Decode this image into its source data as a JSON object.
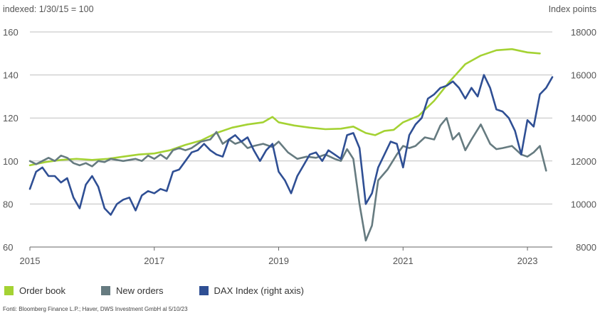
{
  "chart_data": {
    "type": "line",
    "left_axis_title": "indexed: 1/30/15 = 100",
    "right_axis_title": "Index points",
    "left_ylim": [
      60,
      160
    ],
    "left_ticks": [
      "160",
      "140",
      "120",
      "100",
      "80",
      "60"
    ],
    "left_tick_values": [
      160,
      140,
      120,
      100,
      80,
      60
    ],
    "right_ylim": [
      8000,
      18000
    ],
    "right_ticks": [
      "18000",
      "16000",
      "14000",
      "12000",
      "10000",
      "8000"
    ],
    "right_tick_values": [
      18000,
      16000,
      14000,
      12000,
      10000,
      8000
    ],
    "xlim": [
      2015.0,
      2023.4
    ],
    "x_ticks": [
      "2015",
      "2017",
      "2019",
      "2021",
      "2023"
    ],
    "x_tick_values": [
      2015,
      2017,
      2019,
      2021,
      2023
    ],
    "grid": true,
    "series": [
      {
        "name": "Order book",
        "color": "#a4d233",
        "axis": "left",
        "points": [
          [
            2015.0,
            98
          ],
          [
            2015.25,
            99.5
          ],
          [
            2015.5,
            100.5
          ],
          [
            2015.75,
            101
          ],
          [
            2016.0,
            100.5
          ],
          [
            2016.25,
            101
          ],
          [
            2016.5,
            102
          ],
          [
            2016.75,
            103
          ],
          [
            2017.0,
            103.5
          ],
          [
            2017.25,
            105
          ],
          [
            2017.5,
            107.5
          ],
          [
            2017.75,
            109.5
          ],
          [
            2018.0,
            113
          ],
          [
            2018.25,
            115.5
          ],
          [
            2018.5,
            117
          ],
          [
            2018.75,
            118
          ],
          [
            2018.9,
            120.5
          ],
          [
            2019.0,
            118
          ],
          [
            2019.25,
            116.5
          ],
          [
            2019.5,
            115.5
          ],
          [
            2019.75,
            114.8
          ],
          [
            2020.0,
            115
          ],
          [
            2020.2,
            116
          ],
          [
            2020.4,
            113
          ],
          [
            2020.55,
            112
          ],
          [
            2020.7,
            114
          ],
          [
            2020.85,
            114.5
          ],
          [
            2021.0,
            118
          ],
          [
            2021.25,
            121
          ],
          [
            2021.5,
            128
          ],
          [
            2021.75,
            137
          ],
          [
            2022.0,
            145
          ],
          [
            2022.25,
            149
          ],
          [
            2022.5,
            151.5
          ],
          [
            2022.75,
            152
          ],
          [
            2023.0,
            150.5
          ],
          [
            2023.2,
            150
          ]
        ]
      },
      {
        "name": "New orders",
        "color": "#667b80",
        "axis": "left",
        "points": [
          [
            2015.0,
            100
          ],
          [
            2015.1,
            98.5
          ],
          [
            2015.2,
            100
          ],
          [
            2015.3,
            101.5
          ],
          [
            2015.4,
            100
          ],
          [
            2015.5,
            102.5
          ],
          [
            2015.6,
            101.5
          ],
          [
            2015.7,
            99
          ],
          [
            2015.8,
            98
          ],
          [
            2015.9,
            99
          ],
          [
            2016.0,
            97.5
          ],
          [
            2016.1,
            100
          ],
          [
            2016.2,
            99.5
          ],
          [
            2016.3,
            101
          ],
          [
            2016.4,
            100.5
          ],
          [
            2016.5,
            100
          ],
          [
            2016.6,
            100.5
          ],
          [
            2016.7,
            101
          ],
          [
            2016.8,
            100
          ],
          [
            2016.9,
            102.5
          ],
          [
            2017.0,
            101
          ],
          [
            2017.1,
            103
          ],
          [
            2017.2,
            101
          ],
          [
            2017.3,
            105
          ],
          [
            2017.4,
            106
          ],
          [
            2017.5,
            105
          ],
          [
            2017.6,
            106
          ],
          [
            2017.75,
            109
          ],
          [
            2017.9,
            110
          ],
          [
            2018.0,
            113.5
          ],
          [
            2018.1,
            108
          ],
          [
            2018.2,
            110
          ],
          [
            2018.3,
            108
          ],
          [
            2018.4,
            109
          ],
          [
            2018.5,
            106
          ],
          [
            2018.6,
            107
          ],
          [
            2018.75,
            108
          ],
          [
            2018.9,
            106.5
          ],
          [
            2019.0,
            109
          ],
          [
            2019.15,
            104
          ],
          [
            2019.3,
            101
          ],
          [
            2019.45,
            102
          ],
          [
            2019.6,
            101.5
          ],
          [
            2019.75,
            103
          ],
          [
            2019.9,
            101
          ],
          [
            2020.0,
            100
          ],
          [
            2020.1,
            105.5
          ],
          [
            2020.2,
            101
          ],
          [
            2020.3,
            80
          ],
          [
            2020.4,
            63
          ],
          [
            2020.5,
            70
          ],
          [
            2020.6,
            91
          ],
          [
            2020.75,
            96
          ],
          [
            2020.9,
            103
          ],
          [
            2021.0,
            107
          ],
          [
            2021.1,
            106
          ],
          [
            2021.2,
            107
          ],
          [
            2021.35,
            111
          ],
          [
            2021.5,
            110
          ],
          [
            2021.6,
            116.5
          ],
          [
            2021.7,
            120
          ],
          [
            2021.8,
            110
          ],
          [
            2021.9,
            113
          ],
          [
            2022.0,
            105
          ],
          [
            2022.1,
            110
          ],
          [
            2022.25,
            117
          ],
          [
            2022.4,
            108
          ],
          [
            2022.5,
            105.5
          ],
          [
            2022.6,
            106
          ],
          [
            2022.75,
            107
          ],
          [
            2022.9,
            103
          ],
          [
            2023.0,
            102
          ],
          [
            2023.1,
            104
          ],
          [
            2023.2,
            107
          ],
          [
            2023.3,
            95.5
          ]
        ]
      },
      {
        "name": "DAX Index (right axis)",
        "color": "#2f4f94",
        "axis": "right",
        "points": [
          [
            2015.0,
            10700
          ],
          [
            2015.1,
            11500
          ],
          [
            2015.2,
            11700
          ],
          [
            2015.3,
            11300
          ],
          [
            2015.4,
            11300
          ],
          [
            2015.5,
            11000
          ],
          [
            2015.6,
            11200
          ],
          [
            2015.7,
            10300
          ],
          [
            2015.8,
            9800
          ],
          [
            2015.9,
            10900
          ],
          [
            2016.0,
            11300
          ],
          [
            2016.1,
            10800
          ],
          [
            2016.2,
            9800
          ],
          [
            2016.3,
            9500
          ],
          [
            2016.4,
            10000
          ],
          [
            2016.5,
            10200
          ],
          [
            2016.6,
            10300
          ],
          [
            2016.7,
            9700
          ],
          [
            2016.8,
            10400
          ],
          [
            2016.9,
            10600
          ],
          [
            2017.0,
            10500
          ],
          [
            2017.1,
            10700
          ],
          [
            2017.2,
            10600
          ],
          [
            2017.3,
            11500
          ],
          [
            2017.4,
            11600
          ],
          [
            2017.5,
            12000
          ],
          [
            2017.6,
            12400
          ],
          [
            2017.7,
            12500
          ],
          [
            2017.8,
            12800
          ],
          [
            2017.9,
            12500
          ],
          [
            2018.0,
            12300
          ],
          [
            2018.1,
            12200
          ],
          [
            2018.2,
            13000
          ],
          [
            2018.3,
            13200
          ],
          [
            2018.4,
            12900
          ],
          [
            2018.5,
            13100
          ],
          [
            2018.6,
            12500
          ],
          [
            2018.7,
            12000
          ],
          [
            2018.8,
            12500
          ],
          [
            2018.9,
            12800
          ],
          [
            2019.0,
            11500
          ],
          [
            2019.1,
            11100
          ],
          [
            2019.2,
            10500
          ],
          [
            2019.3,
            11300
          ],
          [
            2019.4,
            11800
          ],
          [
            2019.5,
            12300
          ],
          [
            2019.6,
            12400
          ],
          [
            2019.7,
            12000
          ],
          [
            2019.8,
            12500
          ],
          [
            2019.9,
            12300
          ],
          [
            2020.0,
            12100
          ],
          [
            2020.1,
            13200
          ],
          [
            2020.2,
            13300
          ],
          [
            2020.3,
            12600
          ],
          [
            2020.4,
            10000
          ],
          [
            2020.5,
            10500
          ],
          [
            2020.6,
            11700
          ],
          [
            2020.7,
            12300
          ],
          [
            2020.8,
            12900
          ],
          [
            2020.9,
            12800
          ],
          [
            2021.0,
            11700
          ],
          [
            2021.1,
            13200
          ],
          [
            2021.2,
            13700
          ],
          [
            2021.3,
            14000
          ],
          [
            2021.4,
            14900
          ],
          [
            2021.5,
            15100
          ],
          [
            2021.6,
            15400
          ],
          [
            2021.7,
            15500
          ],
          [
            2021.8,
            15700
          ],
          [
            2021.9,
            15400
          ],
          [
            2022.0,
            14900
          ],
          [
            2022.1,
            15400
          ],
          [
            2022.2,
            15000
          ],
          [
            2022.3,
            16000
          ],
          [
            2022.4,
            15400
          ],
          [
            2022.5,
            14400
          ],
          [
            2022.6,
            14300
          ],
          [
            2022.7,
            14000
          ],
          [
            2022.8,
            13400
          ],
          [
            2022.9,
            12300
          ],
          [
            2023.0,
            13900
          ],
          [
            2023.1,
            13600
          ],
          [
            2023.2,
            15100
          ],
          [
            2023.3,
            15400
          ],
          [
            2023.4,
            15900
          ]
        ]
      }
    ]
  },
  "legend": {
    "order_book": "Order book",
    "new_orders": "New orders",
    "dax": "DAX Index (right axis)"
  },
  "footnote": "Fonti: Bloomberg Finance L.P.; Haver, DWS Investment GmbH al 5/10/23"
}
